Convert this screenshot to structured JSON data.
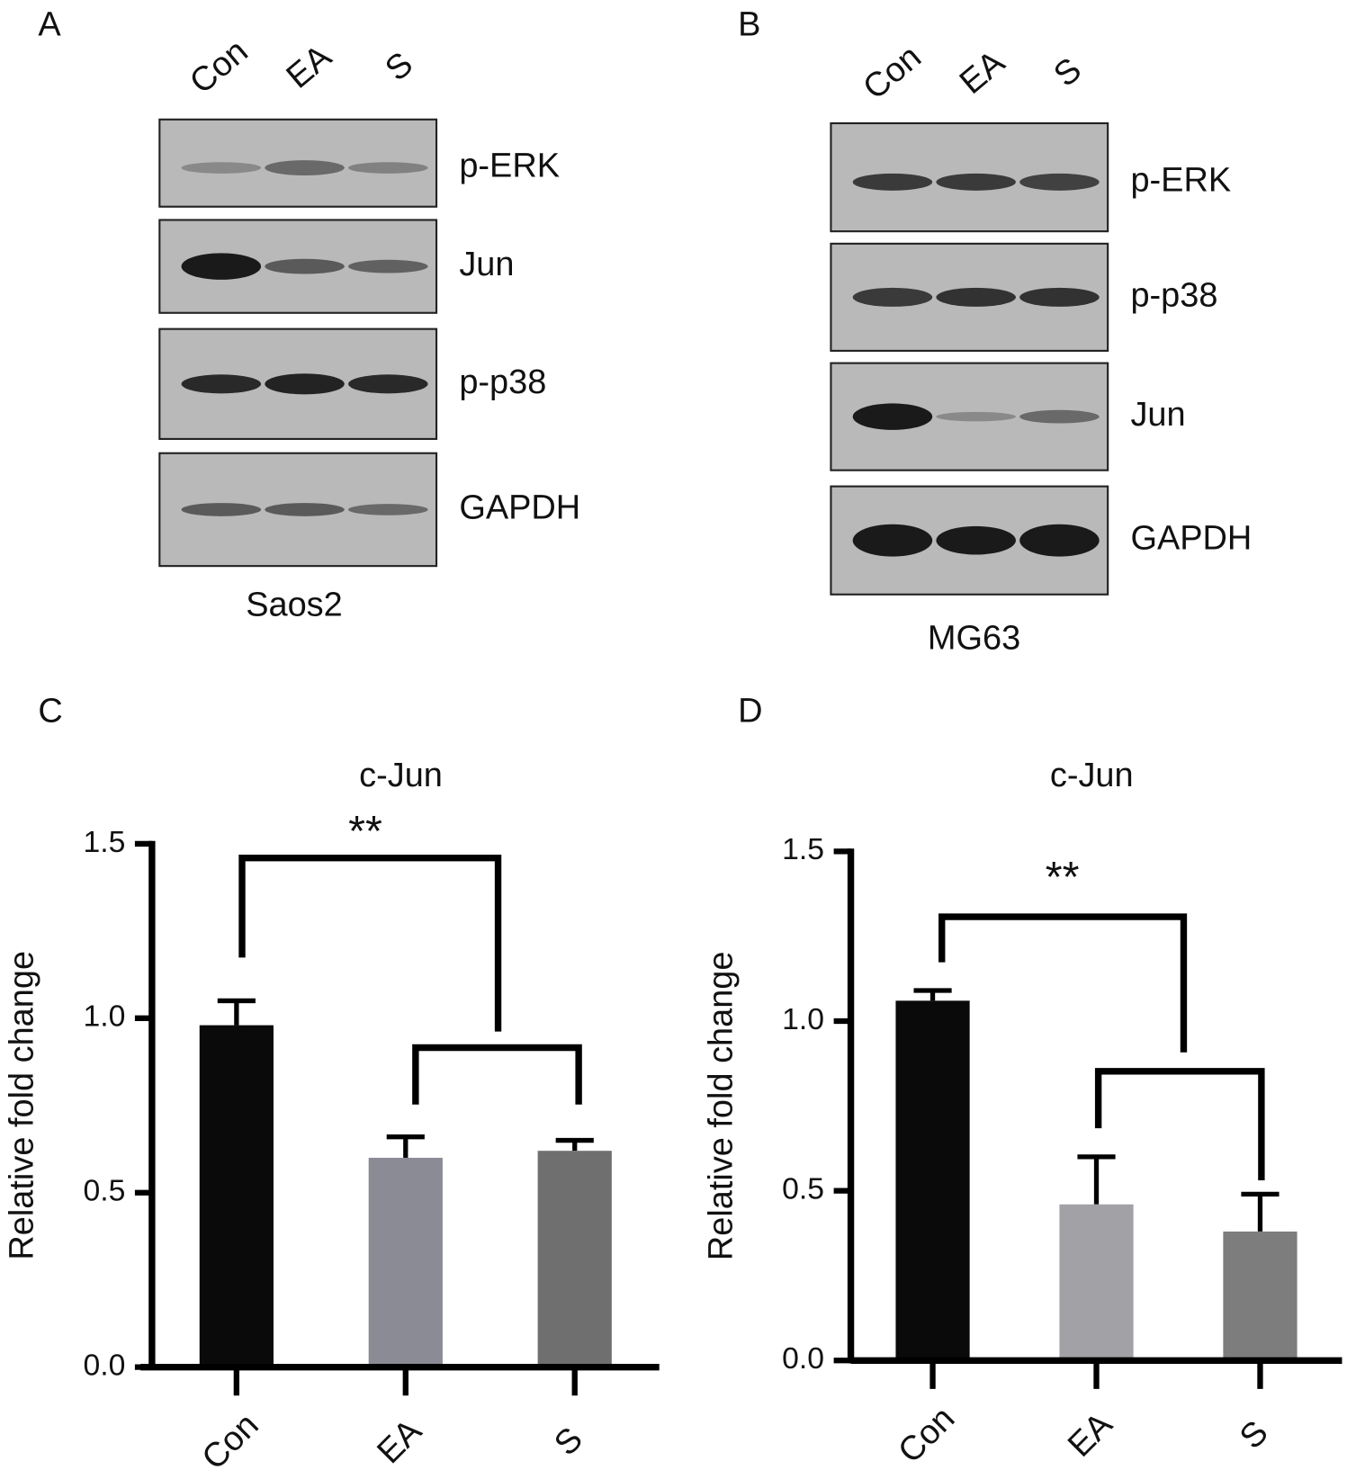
{
  "panel_labels": [
    "A",
    "B",
    "C",
    "D"
  ],
  "blots": [
    {
      "lanes": [
        "Con",
        "EA",
        "S"
      ],
      "rows": [
        "p-ERK",
        "Jun",
        "p-p38",
        "GAPDH"
      ],
      "cell_line": "Saos2"
    },
    {
      "lanes": [
        "Con",
        "EA",
        "S"
      ],
      "rows": [
        "p-ERK",
        "p-p38",
        "Jun",
        "GAPDH"
      ],
      "cell_line": "MG63"
    }
  ],
  "chart_data": [
    {
      "type": "bar",
      "title": "c-Jun",
      "y_label": "Relative fold change",
      "categories": [
        "Con",
        "EA",
        "S"
      ],
      "values": [
        0.98,
        0.6,
        0.62
      ],
      "errors": [
        0.07,
        0.06,
        0.03
      ],
      "colors": [
        "#0a0a0a",
        "#8b8b96",
        "#6f6f6f"
      ],
      "ylim": [
        0,
        1.5
      ],
      "yticks": [
        {
          "value": 0,
          "label": "0.0"
        },
        0.5,
        {
          "value": 1,
          "label": "1.0"
        },
        1.5
      ],
      "annotation": "**"
    },
    {
      "type": "bar",
      "title": "c-Jun",
      "y_label": "Relative fold change",
      "categories": [
        "Con",
        "EA",
        "S"
      ],
      "values": [
        1.06,
        0.46,
        0.38
      ],
      "errors": [
        0.03,
        0.14,
        0.11
      ],
      "colors": [
        "#0a0a0a",
        "#a2a2a6",
        "#7d7d7d"
      ],
      "ylim": [
        0,
        1.5
      ],
      "yticks": [
        {
          "value": 0,
          "label": "0.0"
        },
        0.5,
        {
          "value": 1,
          "label": "1.0"
        },
        1.5
      ],
      "annotation": "**"
    }
  ]
}
